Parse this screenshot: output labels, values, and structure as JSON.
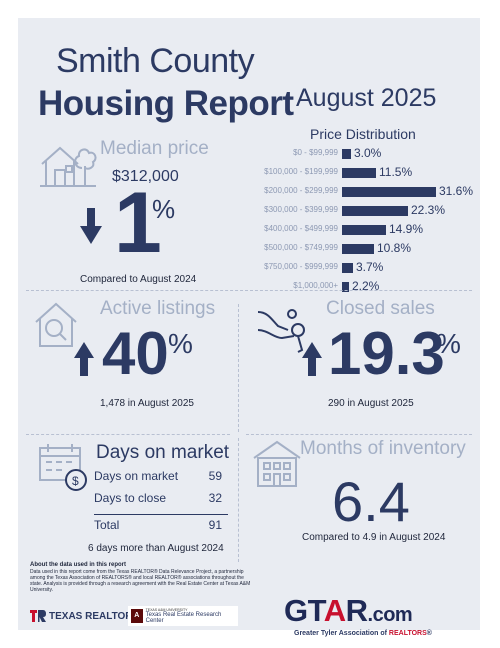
{
  "header": {
    "title_line1": "Smith County",
    "title_line2": "Housing Report",
    "month": "August 2025"
  },
  "median_price": {
    "label": "Median price",
    "value": "$312,000",
    "change": "1",
    "pct_sign": "%",
    "direction": "down",
    "compare": "Compared to August 2024",
    "icon": "house-tree-icon"
  },
  "price_distribution": {
    "title": "Price Distribution"
  },
  "chart_data": {
    "type": "bar",
    "orientation": "horizontal",
    "title": "Price Distribution",
    "categories": [
      "$0 - $99,999",
      "$100,000 - $199,999",
      "$200,000 - $299,999",
      "$300,000 - $399,999",
      "$400,000 - $499,999",
      "$500,000 - $749,999",
      "$750,000 - $999,999",
      "$1,000,000+"
    ],
    "values": [
      3.0,
      11.5,
      31.6,
      22.3,
      14.9,
      10.8,
      3.7,
      2.2
    ],
    "value_labels": [
      "3.0%",
      "11.5%",
      "31.6%",
      "22.3%",
      "14.9%",
      "10.8%",
      "3.7%",
      "2.2%"
    ],
    "unit": "%"
  },
  "active_listings": {
    "label": "Active listings",
    "change": "40",
    "pct_sign": "%",
    "direction": "up",
    "detail": "1,478 in August 2025",
    "icon": "house-search-icon"
  },
  "closed_sales": {
    "label": "Closed sales",
    "change": "19.3",
    "pct_sign": "%",
    "direction": "up",
    "detail": "290 in August 2025",
    "icon": "hand-key-icon"
  },
  "days_on_market": {
    "label": "Days on market",
    "rows": [
      {
        "label": "Days on market",
        "value": "59"
      },
      {
        "label": "Days to close",
        "value": "32"
      }
    ],
    "total_label": "Total",
    "total_value": "91",
    "compare": "6 days more than August 2024",
    "icon": "calendar-money-icon"
  },
  "months_inventory": {
    "label": "Months of inventory",
    "value": "6.4",
    "compare": "Compared to 4.9 in August 2024",
    "icon": "building-icon"
  },
  "about": {
    "title": "About the data used in this report",
    "text": "Data used in this report come from the Texas REALTOR® Data Relevance Project, a partnership among the Texas Association of REALTORS® and local REALTOR® associations throughout the state. Analysis is provided through a research agreement with the Real Estate Center at Texas A&M University."
  },
  "logos": {
    "texas_realtors": "TEXAS REALTORS",
    "tamu_small": "TEXAS A&M UNIVERSITY",
    "tamu_name": "Texas Real Estate Research Center",
    "gtar_g": "GT",
    "gtar_a": "A",
    "gtar_r": "R",
    "gtar_com": ".com",
    "gtar_sub_1": "Greater Tyler Association of ",
    "gtar_sub_2": "REALTORS",
    "gtar_sub_3": "®"
  },
  "colors": {
    "navy": "#2c3a63",
    "light_label": "#a4b0c6",
    "background": "#e9ecf2",
    "gtar_red": "#c8102e"
  }
}
